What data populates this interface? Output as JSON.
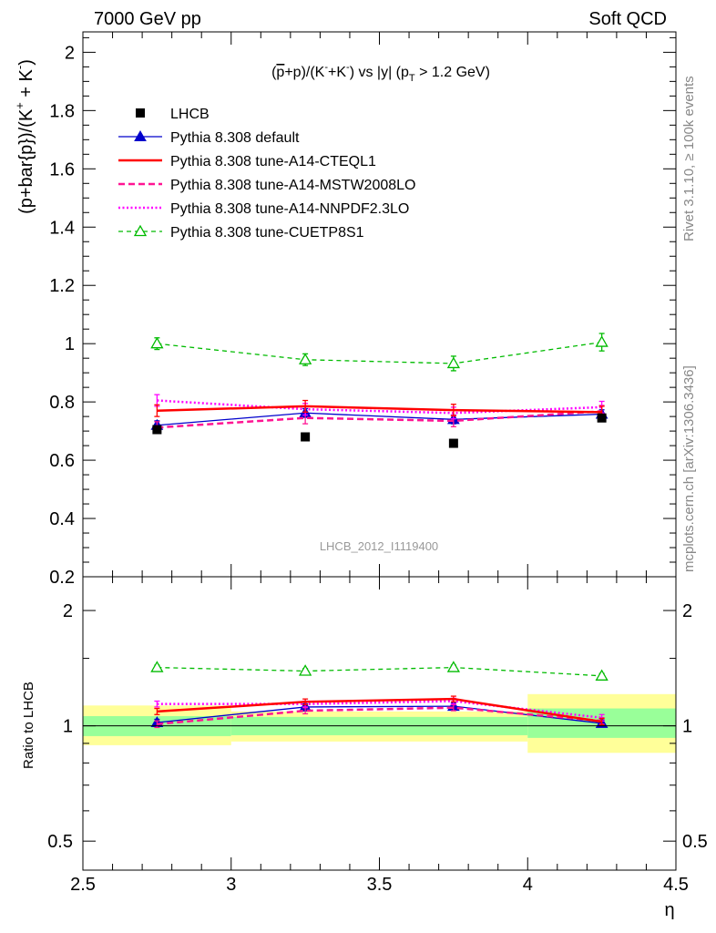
{
  "header": {
    "left": "7000 GeV pp",
    "right": "Soft QCD"
  },
  "side_labels": {
    "rivet": "Rivet 3.1.10, ≥ 100k events",
    "mcplots": "mcplots.cern.ch [arXiv:1306.3436]"
  },
  "watermark": "LHCB_2012_I1119400",
  "colors": {
    "data": "#000000",
    "default": "#0000cc",
    "cteql1": "#ff0000",
    "mstw": "#ff1493",
    "nnpdf": "#ff00ff",
    "cuetp": "#00bb00",
    "band_inner": "#99ff99",
    "band_outer": "#ffff99"
  },
  "chart_data": [
    {
      "type": "line",
      "panel": "main",
      "title": "(p̄+p)/(K⁻+K⁻) vs |y| (p_T > 1.2 GeV)",
      "title_parts": {
        "a": "(",
        "pbar": "p",
        "b": "+p)/(K",
        "km1": "-",
        "c": "+K",
        "km2": "-",
        "d": ") vs |y| (p",
        "t": "T",
        "e": " > 1.2 GeV)"
      },
      "ylabel": "(p+bar{p})/(K⁺ + K⁻)",
      "ylabel_parts": {
        "a": "(p+bar{p})/(K",
        "plus": "+",
        "b": " + K",
        "minus": "-",
        "c": ")"
      },
      "xlim": [
        2.5,
        4.5
      ],
      "ylim": [
        0.2,
        2.07
      ],
      "yticks": [
        0.2,
        0.4,
        0.6,
        0.8,
        1,
        1.2,
        1.4,
        1.6,
        1.8,
        2
      ],
      "ytick_labels": [
        "0.2",
        "0.4",
        "0.6",
        "0.8",
        "1",
        "1.2",
        "1.4",
        "1.6",
        "1.8",
        "2"
      ],
      "x": [
        2.75,
        3.25,
        3.75,
        4.25
      ],
      "data": {
        "name": "LHCB",
        "values": [
          0.705,
          0.68,
          0.658,
          0.745
        ],
        "xerr": 0.25
      },
      "series": [
        {
          "key": "default",
          "name": "Pythia 8.308 default",
          "values": [
            0.72,
            0.762,
            0.74,
            0.758
          ],
          "errors": [
            0.015,
            0.015,
            0.015,
            0.015
          ]
        },
        {
          "key": "cteql1",
          "name": "Pythia 8.308 tune-A14-CTEQL1",
          "values": [
            0.77,
            0.785,
            0.772,
            0.765
          ],
          "errors": [
            0.02,
            0.02,
            0.02,
            0.02
          ]
        },
        {
          "key": "mstw",
          "name": "Pythia 8.308 tune-A14-MSTW2008LO",
          "values": [
            0.712,
            0.745,
            0.735,
            0.768
          ],
          "errors": [
            0.02,
            0.02,
            0.02,
            0.02
          ]
        },
        {
          "key": "nnpdf",
          "name": "Pythia 8.308 tune-A14-NNPDF2.3LO",
          "values": [
            0.805,
            0.775,
            0.762,
            0.782
          ],
          "errors": [
            0.02,
            0.02,
            0.02,
            0.02
          ]
        },
        {
          "key": "cuetp",
          "name": "Pythia 8.308 tune-CUETP8S1",
          "values": [
            1.0,
            0.945,
            0.932,
            1.005
          ],
          "errors": [
            0.02,
            0.02,
            0.025,
            0.03
          ]
        }
      ]
    },
    {
      "type": "line",
      "panel": "ratio",
      "ylabel": "Ratio to LHCB",
      "xlabel": "η",
      "xlim": [
        2.5,
        4.5
      ],
      "ylim": [
        0.42,
        2.45
      ],
      "log_y": true,
      "yticks": [
        0.5,
        1,
        2
      ],
      "ytick_labels": [
        "0.5",
        "1",
        "2"
      ],
      "xticks": [
        2.5,
        3,
        3.5,
        4,
        4.5
      ],
      "xtick_labels": [
        "2.5",
        "3",
        "3.5",
        "4",
        "4.5"
      ],
      "x": [
        2.75,
        3.25,
        3.75,
        4.25
      ],
      "bands": [
        {
          "x": [
            2.5,
            3.0
          ],
          "inner": [
            0.94,
            1.06
          ],
          "outer": [
            0.89,
            1.13
          ]
        },
        {
          "x": [
            3.0,
            3.5
          ],
          "inner": [
            0.945,
            1.055
          ],
          "outer": [
            0.91,
            1.09
          ]
        },
        {
          "x": [
            3.5,
            4.0
          ],
          "inner": [
            0.945,
            1.055
          ],
          "outer": [
            0.91,
            1.09
          ]
        },
        {
          "x": [
            4.0,
            4.5
          ],
          "inner": [
            0.93,
            1.11
          ],
          "outer": [
            0.85,
            1.21
          ]
        }
      ],
      "series": [
        {
          "key": "default",
          "values": [
            1.02,
            1.12,
            1.125,
            1.015
          ]
        },
        {
          "key": "cteql1",
          "values": [
            1.09,
            1.155,
            1.175,
            1.025
          ]
        },
        {
          "key": "mstw",
          "values": [
            1.01,
            1.095,
            1.115,
            1.03
          ]
        },
        {
          "key": "nnpdf",
          "values": [
            1.14,
            1.14,
            1.16,
            1.05
          ]
        },
        {
          "key": "cuetp",
          "values": [
            1.42,
            1.39,
            1.42,
            1.35
          ]
        }
      ]
    }
  ]
}
